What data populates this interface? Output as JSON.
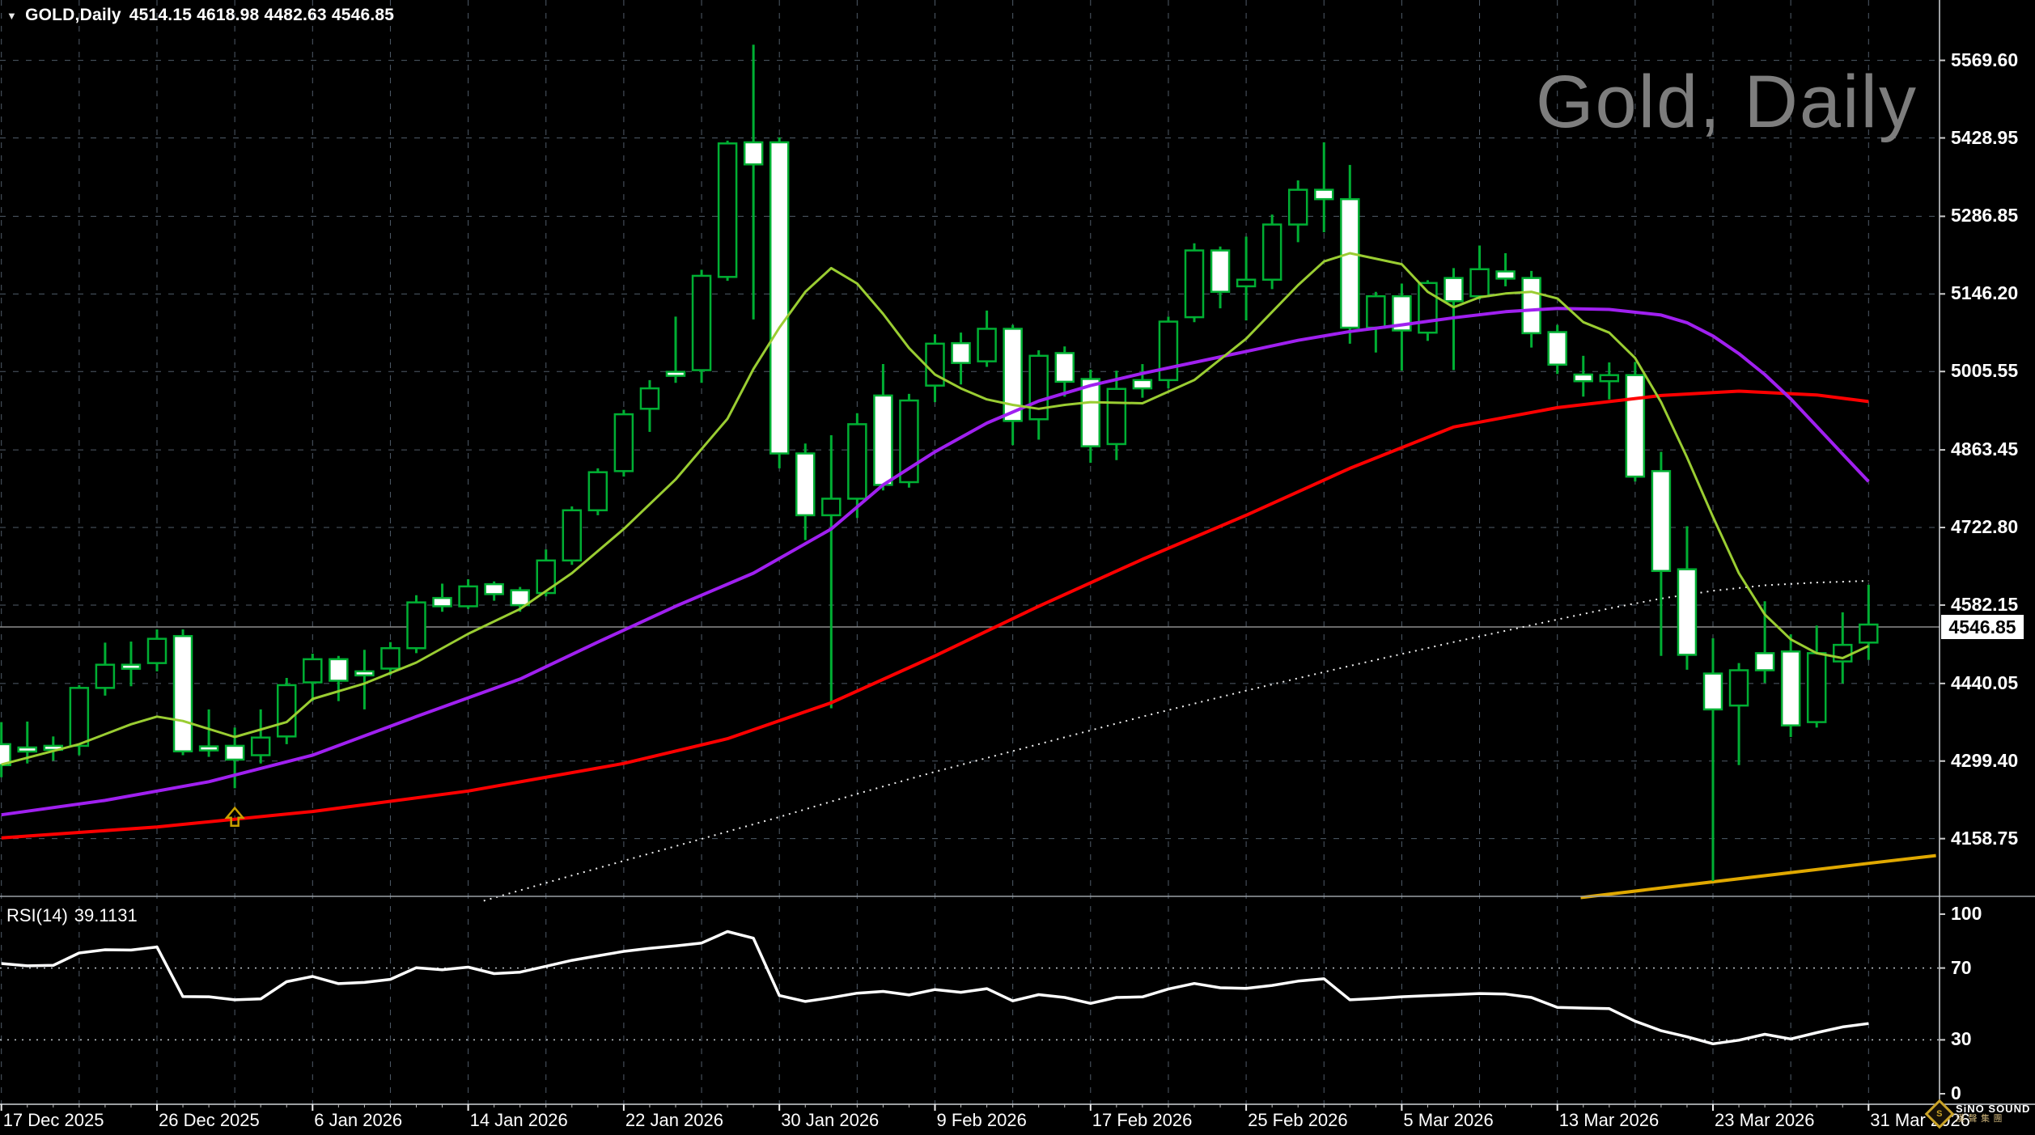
{
  "window": {
    "symbol_label": "GOLD,Daily",
    "ohlc_label": "4514.15 4618.98 4482.63 4546.85",
    "watermark": "Gold, Daily"
  },
  "rsi_panel": {
    "indicator_label": "RSI(14)",
    "indicator_value": "39.1131"
  },
  "price_box_value": "4546.85",
  "logo": {
    "line1": "SiNO SOUND",
    "line2": "漢聲集團"
  },
  "colors": {
    "background": "#000000",
    "grid": "#4f5b68",
    "candle_outline": "#00AF33",
    "bull_fill": "#000000",
    "bear_fill": "#FFFFFF",
    "ma_fast": "#9ACD32",
    "ma_mid": "#A020F0",
    "ma_slow": "#FF0000",
    "ma_dotted": "#FFFFFF",
    "trend_gold": "#E0A800",
    "rsi_line": "#FFFFFF",
    "rsi_levels": "#c0c6cc",
    "current_price_line": "#8C8C8C",
    "frame": "#cfd4d8",
    "watermark": "#7D7D7D",
    "arrow": "#C8A000"
  },
  "chart_data": {
    "type": "candlestick",
    "title": "Gold, Daily",
    "symbol": "GOLD",
    "timeframe": "Daily",
    "x_axis": {
      "labels": [
        "17 Dec 2025",
        "26 Dec 2025",
        "6 Jan 2026",
        "14 Jan 2026",
        "22 Jan 2026",
        "30 Jan 2026",
        "9 Feb 2026",
        "17 Feb 2026",
        "25 Feb 2026",
        "5 Mar 2026",
        "13 Mar 2026",
        "23 Mar 2026",
        "31 Mar 2026"
      ],
      "bars_per_label": 6,
      "total_bars": 73
    },
    "y_axis": {
      "ticks": [
        5569.6,
        5428.95,
        5286.85,
        5146.2,
        5005.55,
        4863.45,
        4722.8,
        4582.15,
        4440.05,
        4299.4,
        4158.75
      ],
      "current_price": 4546.85
    },
    "last_bar": {
      "open": 4514.15,
      "high": 4618.98,
      "low": 4482.63,
      "close": 4546.85
    },
    "candles": [
      [
        4330,
        4370,
        4270,
        4292
      ],
      [
        4324,
        4371,
        4295,
        4319
      ],
      [
        4327,
        4344,
        4300,
        4320
      ],
      [
        4327,
        4437,
        4310,
        4432
      ],
      [
        4432,
        4514,
        4418,
        4474
      ],
      [
        4474,
        4516,
        4435,
        4469
      ],
      [
        4477,
        4538,
        4462,
        4521
      ],
      [
        4526,
        4538,
        4310,
        4317
      ],
      [
        4326,
        4393,
        4307,
        4320
      ],
      [
        4327,
        4360,
        4250,
        4302
      ],
      [
        4310,
        4393,
        4295,
        4342
      ],
      [
        4344,
        4450,
        4330,
        4437
      ],
      [
        4442,
        4494,
        4408,
        4484
      ],
      [
        4484,
        4490,
        4408,
        4445
      ],
      [
        4462,
        4501,
        4393,
        4457
      ],
      [
        4467,
        4515,
        4455,
        4504
      ],
      [
        4504,
        4600,
        4495,
        4587
      ],
      [
        4595,
        4621,
        4570,
        4580
      ],
      [
        4580,
        4629,
        4575,
        4616
      ],
      [
        4620,
        4625,
        4590,
        4602
      ],
      [
        4609,
        4615,
        4570,
        4582
      ],
      [
        4604,
        4683,
        4598,
        4663
      ],
      [
        4663,
        4761,
        4655,
        4754
      ],
      [
        4754,
        4830,
        4745,
        4823
      ],
      [
        4825,
        4936,
        4815,
        4928
      ],
      [
        4938,
        4990,
        4896,
        4975
      ],
      [
        5005,
        5105,
        4985,
        5000
      ],
      [
        5008,
        5190,
        4985,
        5179
      ],
      [
        5177,
        5424,
        5170,
        5419
      ],
      [
        5421,
        5598,
        5100,
        5381
      ],
      [
        5421,
        5430,
        4830,
        4857
      ],
      [
        4857,
        4875,
        4700,
        4745
      ],
      [
        4745,
        4890,
        4395,
        4775
      ],
      [
        4775,
        4930,
        4740,
        4910
      ],
      [
        4962,
        5019,
        4790,
        4800
      ],
      [
        4805,
        4965,
        4795,
        4953
      ],
      [
        4980,
        5073,
        4950,
        5056
      ],
      [
        5057,
        5076,
        4982,
        5021
      ],
      [
        5024,
        5116,
        5014,
        5083
      ],
      [
        5083,
        5090,
        4872,
        4916
      ],
      [
        4919,
        5044,
        4882,
        5034
      ],
      [
        5039,
        5051,
        4960,
        4987
      ],
      [
        4992,
        5009,
        4840,
        4870
      ],
      [
        4874,
        5007,
        4845,
        4974
      ],
      [
        4990,
        5019,
        4958,
        4975
      ],
      [
        4990,
        5105,
        4975,
        5096
      ],
      [
        5104,
        5238,
        5095,
        5225
      ],
      [
        5225,
        5232,
        5120,
        5150
      ],
      [
        5160,
        5250,
        5098,
        5172
      ],
      [
        5172,
        5290,
        5155,
        5272
      ],
      [
        5272,
        5352,
        5240,
        5335
      ],
      [
        5335,
        5421,
        5258,
        5318
      ],
      [
        5318,
        5380,
        5056,
        5085
      ],
      [
        5085,
        5150,
        5040,
        5142
      ],
      [
        5142,
        5165,
        5007,
        5080
      ],
      [
        5076,
        5171,
        5061,
        5166
      ],
      [
        5175,
        5193,
        5008,
        5133
      ],
      [
        5142,
        5234,
        5136,
        5191
      ],
      [
        5187,
        5220,
        5160,
        5174
      ],
      [
        5175,
        5188,
        5049,
        5075
      ],
      [
        5077,
        5090,
        5001,
        5018
      ],
      [
        5000,
        5034,
        4960,
        4988
      ],
      [
        4988,
        5022,
        4955,
        4999
      ],
      [
        4999,
        5023,
        4806,
        4815
      ],
      [
        4825,
        4860,
        4490,
        4644
      ],
      [
        4647,
        4725,
        4465,
        4492
      ],
      [
        4458,
        4522,
        4082,
        4393
      ],
      [
        4400,
        4477,
        4292,
        4464
      ],
      [
        4495,
        4589,
        4441,
        4464
      ],
      [
        4498,
        4529,
        4343,
        4364
      ],
      [
        4370,
        4545,
        4360,
        4495
      ],
      [
        4480,
        4569,
        4440,
        4510
      ],
      [
        4514.15,
        4618.98,
        4482.63,
        4546.85
      ]
    ],
    "moving_averages": [
      {
        "name": "ma-fast",
        "style": "solid",
        "width": 3,
        "color": "#9ACD32",
        "points": [
          [
            0,
            4293
          ],
          [
            3,
            4330
          ],
          [
            5,
            4366
          ],
          [
            6,
            4380
          ],
          [
            7,
            4372
          ],
          [
            9,
            4343
          ],
          [
            11,
            4370
          ],
          [
            12,
            4412
          ],
          [
            14,
            4440
          ],
          [
            16,
            4478
          ],
          [
            18,
            4530
          ],
          [
            20,
            4575
          ],
          [
            22,
            4640
          ],
          [
            24,
            4720
          ],
          [
            26,
            4810
          ],
          [
            28,
            4920
          ],
          [
            29,
            5010
          ],
          [
            30,
            5085
          ],
          [
            31,
            5150
          ],
          [
            32,
            5193
          ],
          [
            33,
            5165
          ],
          [
            34,
            5110
          ],
          [
            35,
            5048
          ],
          [
            36,
            5000
          ],
          [
            37,
            4975
          ],
          [
            38,
            4955
          ],
          [
            39,
            4945
          ],
          [
            40,
            4938
          ],
          [
            41,
            4945
          ],
          [
            42,
            4950
          ],
          [
            44,
            4948
          ],
          [
            46,
            4990
          ],
          [
            48,
            5065
          ],
          [
            50,
            5162
          ],
          [
            51,
            5205
          ],
          [
            52,
            5220
          ],
          [
            54,
            5200
          ],
          [
            55,
            5150
          ],
          [
            56,
            5122
          ],
          [
            57,
            5140
          ],
          [
            58,
            5147
          ],
          [
            59,
            5150
          ],
          [
            60,
            5138
          ],
          [
            61,
            5095
          ],
          [
            62,
            5076
          ],
          [
            63,
            5030
          ],
          [
            64,
            4950
          ],
          [
            65,
            4850
          ],
          [
            66,
            4742
          ],
          [
            67,
            4640
          ],
          [
            68,
            4565
          ],
          [
            69,
            4520
          ],
          [
            70,
            4495
          ],
          [
            71,
            4486
          ],
          [
            72,
            4508
          ]
        ]
      },
      {
        "name": "ma-mid",
        "style": "solid",
        "width": 4,
        "color": "#A020F0",
        "points": [
          [
            0,
            4202
          ],
          [
            4,
            4228
          ],
          [
            8,
            4262
          ],
          [
            12,
            4310
          ],
          [
            16,
            4380
          ],
          [
            20,
            4448
          ],
          [
            23,
            4515
          ],
          [
            26,
            4580
          ],
          [
            29,
            4640
          ],
          [
            32,
            4720
          ],
          [
            34,
            4800
          ],
          [
            36,
            4860
          ],
          [
            38,
            4912
          ],
          [
            40,
            4952
          ],
          [
            42,
            4980
          ],
          [
            44,
            5002
          ],
          [
            46,
            5022
          ],
          [
            48,
            5042
          ],
          [
            50,
            5062
          ],
          [
            52,
            5078
          ],
          [
            54,
            5090
          ],
          [
            56,
            5103
          ],
          [
            58,
            5114
          ],
          [
            60,
            5120
          ],
          [
            62,
            5118
          ],
          [
            64,
            5108
          ],
          [
            65,
            5094
          ],
          [
            66,
            5070
          ],
          [
            67,
            5038
          ],
          [
            68,
            5000
          ],
          [
            69,
            4956
          ],
          [
            70,
            4906
          ],
          [
            71,
            4856
          ],
          [
            72,
            4806
          ]
        ]
      },
      {
        "name": "ma-slow",
        "style": "solid",
        "width": 4,
        "color": "#FF0000",
        "points": [
          [
            0,
            4160
          ],
          [
            6,
            4180
          ],
          [
            12,
            4208
          ],
          [
            18,
            4245
          ],
          [
            24,
            4295
          ],
          [
            28,
            4340
          ],
          [
            32,
            4405
          ],
          [
            36,
            4490
          ],
          [
            40,
            4580
          ],
          [
            44,
            4665
          ],
          [
            48,
            4745
          ],
          [
            52,
            4830
          ],
          [
            56,
            4905
          ],
          [
            60,
            4940
          ],
          [
            64,
            4962
          ],
          [
            67,
            4970
          ],
          [
            70,
            4963
          ],
          [
            72,
            4951
          ]
        ]
      },
      {
        "name": "ma-long-dotted",
        "style": "dotted",
        "width": 2,
        "color": "#FFFFFF",
        "points": [
          [
            18.6,
            4046
          ],
          [
            22,
            4092
          ],
          [
            26,
            4145
          ],
          [
            30,
            4198
          ],
          [
            33,
            4240
          ],
          [
            36,
            4280
          ],
          [
            40,
            4330
          ],
          [
            44,
            4380
          ],
          [
            48,
            4427
          ],
          [
            52,
            4472
          ],
          [
            56,
            4515
          ],
          [
            60,
            4556
          ],
          [
            62,
            4576
          ],
          [
            64,
            4594
          ],
          [
            66,
            4608
          ],
          [
            68,
            4618
          ],
          [
            70,
            4623
          ],
          [
            72,
            4626
          ]
        ]
      }
    ],
    "trendlines": [
      {
        "name": "gold-trendline",
        "color": "#E0A800",
        "width": 4,
        "points": [
          [
            60.9,
            4052
          ],
          [
            72,
            4114
          ],
          [
            74.6,
            4128
          ]
        ]
      }
    ],
    "buy_arrow": {
      "bar": 9,
      "price": 4210
    },
    "rsi": {
      "period": 14,
      "current": 39.1131,
      "levels": {
        "max": 100,
        "upper": 70,
        "lower": 30,
        "min": 0
      },
      "values": [
        72.5,
        71.2,
        71.5,
        78.4,
        80.2,
        80.0,
        81.7,
        54.1,
        54.0,
        52.3,
        52.8,
        62.4,
        65.3,
        61.3,
        62.0,
        63.7,
        70.2,
        69.0,
        70.5,
        66.9,
        67.7,
        71.0,
        74.3,
        76.8,
        79.3,
        81.0,
        82.3,
        83.9,
        90.3,
        86.6,
        54.7,
        51.4,
        53.5,
        56.0,
        57.0,
        55.0,
        58.0,
        56.5,
        58.5,
        51.7,
        55.2,
        53.6,
        50.3,
        53.6,
        53.9,
        58.3,
        61.4,
        59.0,
        58.7,
        60.3,
        62.7,
        64.0,
        52.3,
        53.0,
        54.0,
        54.6,
        55.2,
        55.8,
        55.5,
        53.6,
        48.1,
        47.7,
        47.4,
        40.4,
        35.1,
        31.7,
        27.8,
        29.8,
        33.1,
        30.5,
        34.0,
        37.2,
        39.1131
      ]
    }
  }
}
